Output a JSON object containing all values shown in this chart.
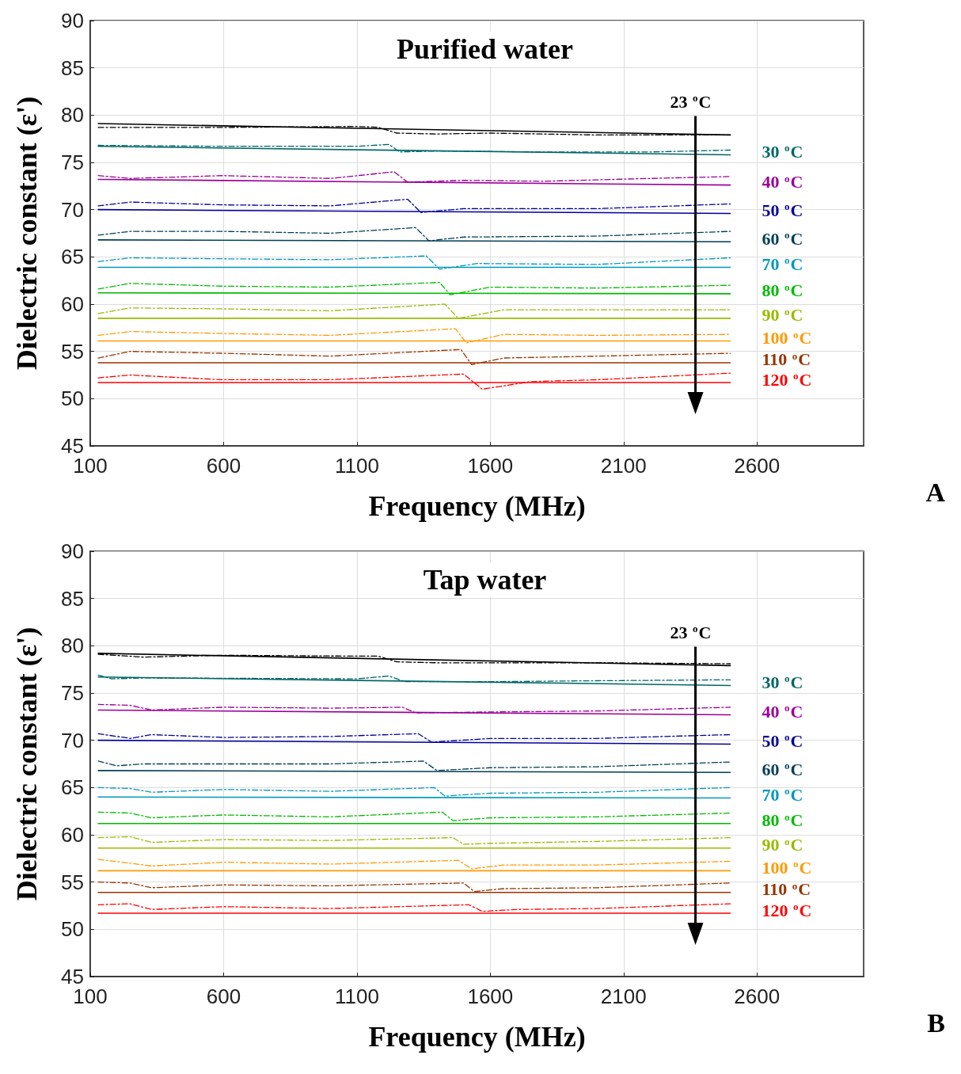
{
  "chart_data": [
    {
      "type": "line",
      "title": "Purified water",
      "xlabel": "Frequency (MHz)",
      "ylabel": "Dielectric constant (ε')",
      "xlim": [
        100,
        3000
      ],
      "xticks": [
        100,
        600,
        1100,
        1600,
        2100,
        2600
      ],
      "ylim": [
        45,
        90
      ],
      "yticks": [
        45,
        50,
        55,
        60,
        65,
        70,
        75,
        80,
        85,
        90
      ],
      "grid": true,
      "marker": "none",
      "series": [
        {
          "name": "23 $^{o}$C",
          "color": "#000000",
          "line_style": "solid",
          "x": [
            130,
            2500
          ],
          "values": [
            79.1,
            77.9
          ]
        },
        {
          "name": "30 $^{o}$C",
          "color": "#006666",
          "line_style": "solid",
          "x": [
            130,
            2500
          ],
          "values": [
            76.7,
            75.8
          ]
        },
        {
          "name": "40 $^{o}$C",
          "color": "#990099",
          "line_style": "solid",
          "x": [
            130,
            2500
          ],
          "values": [
            73.2,
            72.6
          ]
        },
        {
          "name": "50 $^{o}$C",
          "color": "#000099",
          "line_style": "solid",
          "x": [
            130,
            2500
          ],
          "values": [
            70.0,
            69.6
          ]
        },
        {
          "name": "60 $^{o}$C",
          "color": "#003f55",
          "line_style": "solid",
          "x": [
            130,
            2500
          ],
          "values": [
            66.8,
            66.6
          ]
        },
        {
          "name": "70 $^{o}$C",
          "color": "#0099bb",
          "line_style": "solid",
          "x": [
            130,
            2500
          ],
          "values": [
            63.9,
            63.9
          ]
        },
        {
          "name": "80 $^{o}$C",
          "color": "#00bb00",
          "line_style": "solid",
          "x": [
            130,
            2500
          ],
          "values": [
            61.2,
            61.1
          ]
        },
        {
          "name": "90 $^{o}$C",
          "color": "#99bb00",
          "line_style": "solid",
          "x": [
            130,
            2500
          ],
          "values": [
            58.5,
            58.5
          ]
        },
        {
          "name": "100 $^{o}$C",
          "color": "#ff9900",
          "line_style": "solid",
          "x": [
            130,
            2500
          ],
          "values": [
            56.1,
            56.1
          ]
        },
        {
          "name": "110 $^{o}$C",
          "color": "#993300",
          "line_style": "solid",
          "x": [
            130,
            2500
          ],
          "values": [
            53.8,
            53.8
          ]
        },
        {
          "name": "120 $^{o}$C",
          "color": "#ff0000",
          "line_style": "solid",
          "x": [
            130,
            2500
          ],
          "values": [
            51.7,
            51.7
          ]
        },
        {
          "color": "#000000",
          "line_style": "dashed",
          "x": [
            130,
            600,
            1100,
            1180,
            1250,
            1400,
            1600,
            2000,
            2500
          ],
          "values": [
            78.7,
            78.7,
            78.8,
            78.7,
            78.1,
            78.0,
            78.1,
            77.9,
            77.9
          ]
        },
        {
          "color": "#006666",
          "line_style": "dashed",
          "x": [
            130,
            600,
            1100,
            1220,
            1260,
            1400,
            1800,
            2200,
            2500
          ],
          "values": [
            76.8,
            76.7,
            76.7,
            76.9,
            76.1,
            76.2,
            76.1,
            76.1,
            76.3
          ]
        },
        {
          "color": "#990099",
          "line_style": "dashed",
          "x": [
            130,
            250,
            600,
            1000,
            1240,
            1290,
            1500,
            1800,
            2200,
            2500
          ],
          "values": [
            73.6,
            73.3,
            73.6,
            73.3,
            74.0,
            72.9,
            73.1,
            73.0,
            73.3,
            73.5
          ]
        },
        {
          "color": "#000099",
          "line_style": "dashed",
          "x": [
            130,
            250,
            600,
            1000,
            1290,
            1340,
            1500,
            2000,
            2500
          ],
          "values": [
            70.4,
            70.8,
            70.5,
            70.4,
            71.1,
            69.7,
            70.1,
            70.1,
            70.6
          ]
        },
        {
          "color": "#003f55",
          "line_style": "dashed",
          "x": [
            130,
            250,
            600,
            1000,
            1320,
            1370,
            1500,
            2000,
            2500
          ],
          "values": [
            67.3,
            67.7,
            67.7,
            67.5,
            68.1,
            66.7,
            67.1,
            67.2,
            67.7
          ]
        },
        {
          "color": "#0099bb",
          "line_style": "dashed",
          "x": [
            130,
            250,
            600,
            1000,
            1360,
            1410,
            1550,
            2000,
            2500
          ],
          "values": [
            64.5,
            64.9,
            64.8,
            64.7,
            65.1,
            63.7,
            64.3,
            64.2,
            64.9
          ]
        },
        {
          "color": "#00bb00",
          "line_style": "dashed",
          "x": [
            130,
            250,
            600,
            1000,
            1410,
            1450,
            1600,
            2000,
            2500
          ],
          "values": [
            61.6,
            62.2,
            61.9,
            61.8,
            62.3,
            61.0,
            61.8,
            61.7,
            62.0
          ]
        },
        {
          "color": "#99bb00",
          "line_style": "dashed",
          "x": [
            130,
            250,
            600,
            1000,
            1430,
            1480,
            1650,
            2000,
            2500
          ],
          "values": [
            59.0,
            59.6,
            59.5,
            59.3,
            60.0,
            58.5,
            59.4,
            59.4,
            59.4
          ]
        },
        {
          "color": "#ff9900",
          "line_style": "dashed",
          "x": [
            130,
            250,
            600,
            1000,
            1470,
            1510,
            1650,
            2000,
            2500
          ],
          "values": [
            56.7,
            57.1,
            56.9,
            56.7,
            57.4,
            55.9,
            56.8,
            56.7,
            56.8
          ]
        },
        {
          "color": "#993300",
          "line_style": "dashed",
          "x": [
            130,
            250,
            600,
            1000,
            1490,
            1530,
            1650,
            2000,
            2500
          ],
          "values": [
            54.3,
            55.0,
            54.8,
            54.5,
            55.2,
            53.6,
            54.3,
            54.5,
            54.8
          ]
        },
        {
          "color": "#ff0000",
          "line_style": "dashed",
          "x": [
            130,
            250,
            600,
            1000,
            1500,
            1570,
            1750,
            2000,
            2500
          ],
          "values": [
            52.2,
            52.5,
            52.0,
            52.0,
            52.6,
            51.0,
            51.8,
            52.0,
            52.7
          ]
        }
      ],
      "annotations": [
        "A"
      ]
    },
    {
      "type": "line",
      "title": "Tap water",
      "xlabel": "Frequency (MHz)",
      "ylabel": "Dielectric constant (ε')",
      "xlim": [
        100,
        3000
      ],
      "xticks": [
        100,
        600,
        1100,
        1600,
        2100,
        2600
      ],
      "ylim": [
        45,
        90
      ],
      "yticks": [
        45,
        50,
        55,
        60,
        65,
        70,
        75,
        80,
        85,
        90
      ],
      "grid": true,
      "marker": "none",
      "series": [
        {
          "name": "23 $^{o}$C",
          "color": "#000000",
          "line_style": "solid",
          "x": [
            130,
            2500
          ],
          "values": [
            79.2,
            77.9
          ]
        },
        {
          "name": "30 $^{o}$C",
          "color": "#006666",
          "line_style": "solid",
          "x": [
            130,
            2500
          ],
          "values": [
            76.7,
            75.8
          ]
        },
        {
          "name": "40 $^{o}$C",
          "color": "#990099",
          "line_style": "solid",
          "x": [
            130,
            2500
          ],
          "values": [
            73.2,
            72.7
          ]
        },
        {
          "name": "50 $^{o}$C",
          "color": "#000099",
          "line_style": "solid",
          "x": [
            130,
            2500
          ],
          "values": [
            70.0,
            69.6
          ]
        },
        {
          "name": "60 $^{o}$C",
          "color": "#003f55",
          "line_style": "solid",
          "x": [
            130,
            2500
          ],
          "values": [
            66.8,
            66.6
          ]
        },
        {
          "name": "70 $^{o}$C",
          "color": "#0099bb",
          "line_style": "solid",
          "x": [
            130,
            2500
          ],
          "values": [
            64.0,
            63.9
          ]
        },
        {
          "name": "80 $^{o}$C",
          "color": "#00bb00",
          "line_style": "solid",
          "x": [
            130,
            2500
          ],
          "values": [
            61.2,
            61.2
          ]
        },
        {
          "name": "90 $^{o}$C",
          "color": "#99bb00",
          "line_style": "solid",
          "x": [
            130,
            2500
          ],
          "values": [
            58.6,
            58.6
          ]
        },
        {
          "name": "100 $^{o}$C",
          "color": "#ff9900",
          "line_style": "solid",
          "x": [
            130,
            2500
          ],
          "values": [
            56.2,
            56.2
          ]
        },
        {
          "name": "110 $^{o}$C",
          "color": "#993300",
          "line_style": "solid",
          "x": [
            130,
            2500
          ],
          "values": [
            53.9,
            53.9
          ]
        },
        {
          "name": "120 $^{o}$C",
          "color": "#ff0000",
          "line_style": "solid",
          "x": [
            130,
            2500
          ],
          "values": [
            51.7,
            51.7
          ]
        },
        {
          "color": "#000000",
          "line_style": "dashed",
          "x": [
            130,
            300,
            600,
            1100,
            1180,
            1250,
            1400,
            1700,
            2000,
            2500
          ],
          "values": [
            79.1,
            78.8,
            79.0,
            78.9,
            78.9,
            78.3,
            78.2,
            78.2,
            78.2,
            78.1
          ]
        },
        {
          "color": "#006666",
          "line_style": "dashed",
          "x": [
            130,
            180,
            300,
            1100,
            1220,
            1280,
            1600,
            2000,
            2500
          ],
          "values": [
            76.9,
            76.5,
            76.6,
            76.5,
            76.8,
            76.2,
            76.2,
            76.3,
            76.4
          ]
        },
        {
          "color": "#990099",
          "line_style": "dashed",
          "x": [
            130,
            250,
            330,
            600,
            1000,
            1270,
            1320,
            1600,
            2000,
            2500
          ],
          "values": [
            73.8,
            73.7,
            73.2,
            73.5,
            73.4,
            73.5,
            72.9,
            73.0,
            73.1,
            73.5
          ]
        },
        {
          "color": "#000099",
          "line_style": "dashed",
          "x": [
            130,
            250,
            330,
            600,
            1000,
            1330,
            1380,
            1600,
            2000,
            2500
          ],
          "values": [
            70.7,
            70.2,
            70.6,
            70.3,
            70.4,
            70.7,
            69.8,
            70.2,
            70.2,
            70.6
          ]
        },
        {
          "color": "#003f55",
          "line_style": "dashed",
          "x": [
            130,
            200,
            300,
            600,
            1000,
            1350,
            1400,
            1600,
            2000,
            2500
          ],
          "values": [
            67.8,
            67.3,
            67.5,
            67.5,
            67.5,
            67.8,
            66.8,
            67.1,
            67.2,
            67.7
          ]
        },
        {
          "color": "#0099bb",
          "line_style": "dashed",
          "x": [
            130,
            250,
            330,
            600,
            1000,
            1390,
            1430,
            1600,
            2000,
            2500
          ],
          "values": [
            65.0,
            64.9,
            64.5,
            64.8,
            64.6,
            65.0,
            64.1,
            64.4,
            64.5,
            65.0
          ]
        },
        {
          "color": "#00bb00",
          "line_style": "dashed",
          "x": [
            130,
            250,
            330,
            600,
            1000,
            1420,
            1460,
            1600,
            2000,
            2500
          ],
          "values": [
            62.4,
            62.3,
            61.8,
            62.1,
            61.9,
            62.4,
            61.5,
            61.8,
            61.9,
            62.3
          ]
        },
        {
          "color": "#99bb00",
          "line_style": "dashed",
          "x": [
            130,
            250,
            330,
            600,
            1000,
            1460,
            1500,
            1600,
            2000,
            2500
          ],
          "values": [
            59.7,
            59.8,
            59.2,
            59.5,
            59.4,
            59.7,
            59.0,
            59.1,
            59.3,
            59.7
          ]
        },
        {
          "color": "#ff9900",
          "line_style": "dashed",
          "x": [
            130,
            250,
            330,
            600,
            1000,
            1480,
            1530,
            1650,
            2000,
            2500
          ],
          "values": [
            57.4,
            57.0,
            56.7,
            57.1,
            56.9,
            57.3,
            56.4,
            56.8,
            56.8,
            57.2
          ]
        },
        {
          "color": "#993300",
          "line_style": "dashed",
          "x": [
            130,
            250,
            330,
            600,
            1000,
            1500,
            1540,
            1650,
            2000,
            2500
          ],
          "values": [
            55.0,
            54.9,
            54.4,
            54.7,
            54.6,
            54.9,
            54.0,
            54.3,
            54.4,
            54.9
          ]
        },
        {
          "color": "#ff0000",
          "line_style": "dashed",
          "x": [
            130,
            250,
            330,
            600,
            1000,
            1520,
            1570,
            1700,
            2000,
            2500
          ],
          "values": [
            52.6,
            52.7,
            52.1,
            52.4,
            52.2,
            52.6,
            51.9,
            52.1,
            52.2,
            52.7
          ]
        }
      ],
      "annotations": [
        "B"
      ]
    }
  ]
}
